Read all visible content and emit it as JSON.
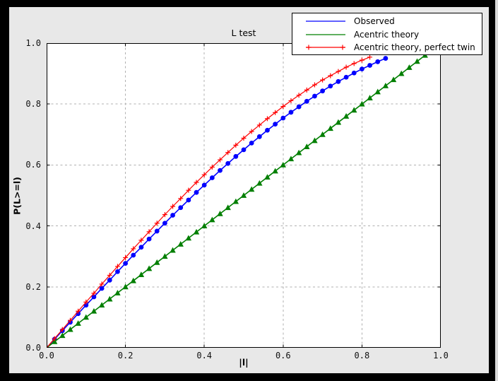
{
  "window": {
    "background": "#000000",
    "figure_background": "#e8e8e8",
    "plot_background": "#ffffff",
    "grid_color": "#b0b0b0",
    "axis_color": "#000000"
  },
  "chart_data": {
    "type": "line",
    "title": "L test",
    "xlabel": "|l|",
    "ylabel": "P(L>=l)",
    "xlim": [
      0.0,
      1.0
    ],
    "ylim": [
      0.0,
      1.0
    ],
    "x_ticks": [
      "0.0",
      "0.2",
      "0.4",
      "0.6",
      "0.8",
      "1.0"
    ],
    "y_ticks": [
      "0.0",
      "0.2",
      "0.4",
      "0.6",
      "0.8",
      "1.0"
    ],
    "grid": "dashed",
    "legend_position": "top-right-outside-overlapping",
    "series": [
      {
        "name": "Observed",
        "color": "#0000ff",
        "marker": "circle",
        "legend_markers": false,
        "x": [
          0,
          0.02,
          0.04,
          0.06,
          0.08,
          0.1,
          0.12,
          0.14,
          0.16,
          0.18,
          0.2,
          0.22,
          0.24,
          0.26,
          0.28,
          0.3,
          0.32,
          0.34,
          0.36,
          0.38,
          0.4,
          0.42,
          0.44,
          0.46,
          0.48,
          0.5,
          0.52,
          0.54,
          0.56,
          0.58,
          0.6,
          0.62,
          0.64,
          0.66,
          0.68,
          0.7,
          0.72,
          0.74,
          0.76,
          0.78,
          0.8,
          0.82,
          0.84,
          0.86
        ],
        "y": [
          0,
          0.028,
          0.056,
          0.084,
          0.112,
          0.14,
          0.167,
          0.195,
          0.222,
          0.25,
          0.277,
          0.304,
          0.33,
          0.357,
          0.383,
          0.409,
          0.435,
          0.46,
          0.485,
          0.51,
          0.534,
          0.558,
          0.582,
          0.605,
          0.628,
          0.65,
          0.672,
          0.693,
          0.714,
          0.734,
          0.754,
          0.773,
          0.791,
          0.809,
          0.826,
          0.843,
          0.859,
          0.874,
          0.888,
          0.902,
          0.915,
          0.927,
          0.939,
          0.95
        ]
      },
      {
        "name": "Acentric theory",
        "color": "#007f00",
        "marker": "triangle_up",
        "legend_markers": false,
        "x": [
          0,
          0.02,
          0.04,
          0.06,
          0.08,
          0.1,
          0.12,
          0.14,
          0.16,
          0.18,
          0.2,
          0.22,
          0.24,
          0.26,
          0.28,
          0.3,
          0.32,
          0.34,
          0.36,
          0.38,
          0.4,
          0.42,
          0.44,
          0.46,
          0.48,
          0.5,
          0.52,
          0.54,
          0.56,
          0.58,
          0.6,
          0.62,
          0.64,
          0.66,
          0.68,
          0.7,
          0.72,
          0.74,
          0.76,
          0.78,
          0.8,
          0.82,
          0.84,
          0.86,
          0.88,
          0.9,
          0.92,
          0.94,
          0.96
        ],
        "y": [
          0,
          0.02,
          0.04,
          0.06,
          0.08,
          0.1,
          0.12,
          0.14,
          0.16,
          0.18,
          0.2,
          0.22,
          0.24,
          0.26,
          0.28,
          0.3,
          0.32,
          0.34,
          0.36,
          0.38,
          0.4,
          0.42,
          0.44,
          0.46,
          0.48,
          0.5,
          0.52,
          0.54,
          0.56,
          0.58,
          0.6,
          0.62,
          0.64,
          0.66,
          0.68,
          0.7,
          0.72,
          0.74,
          0.76,
          0.78,
          0.8,
          0.82,
          0.84,
          0.86,
          0.88,
          0.9,
          0.92,
          0.94,
          0.96
        ]
      },
      {
        "name": "Acentric theory, perfect twin",
        "color": "#ff0000",
        "marker": "plus",
        "legend_markers": true,
        "x": [
          0,
          0.02,
          0.04,
          0.06,
          0.08,
          0.1,
          0.12,
          0.14,
          0.16,
          0.18,
          0.2,
          0.22,
          0.24,
          0.26,
          0.28,
          0.3,
          0.32,
          0.34,
          0.36,
          0.38,
          0.4,
          0.42,
          0.44,
          0.46,
          0.48,
          0.5,
          0.52,
          0.54,
          0.56,
          0.58,
          0.6,
          0.62,
          0.64,
          0.66,
          0.68,
          0.7,
          0.72,
          0.74,
          0.76,
          0.78,
          0.8,
          0.82
        ],
        "y": [
          0,
          0.03,
          0.06,
          0.09,
          0.12,
          0.15,
          0.179,
          0.209,
          0.238,
          0.267,
          0.296,
          0.325,
          0.353,
          0.381,
          0.409,
          0.437,
          0.464,
          0.49,
          0.517,
          0.543,
          0.568,
          0.593,
          0.617,
          0.641,
          0.665,
          0.688,
          0.71,
          0.731,
          0.752,
          0.772,
          0.792,
          0.811,
          0.829,
          0.846,
          0.863,
          0.879,
          0.893,
          0.907,
          0.921,
          0.933,
          0.944,
          0.954
        ]
      }
    ]
  },
  "legend": {
    "items": [
      "Observed",
      "Acentric theory",
      "Acentric theory, perfect twin"
    ]
  }
}
